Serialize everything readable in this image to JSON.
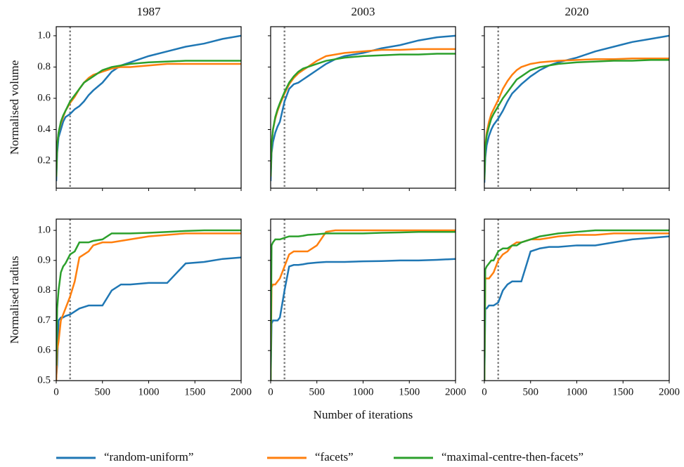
{
  "chart_data": [
    {
      "type": "line",
      "title": "1987",
      "ylabel": "Normalised volume",
      "x": [
        0,
        10,
        25,
        50,
        75,
        100,
        150,
        200,
        250,
        300,
        350,
        400,
        500,
        600,
        700,
        800,
        1000,
        1200,
        1400,
        1600,
        1800,
        2000
      ],
      "xlim": [
        0,
        2000
      ],
      "ylim": [
        0.025,
        1.058
      ],
      "xticks": [
        0,
        500,
        1000,
        1500,
        2000
      ],
      "yticks": [
        0.2,
        0.4,
        0.6,
        0.8,
        {
          "value": 1,
          "label": "1.0"
        }
      ],
      "show_xticklabels": false,
      "show_yticklabels": true,
      "vline": 150,
      "legend": "bottom",
      "series": [
        {
          "name": "“random-uniform”",
          "color": "#1f77b4",
          "values": [
            0.07,
            0.25,
            0.35,
            0.4,
            0.45,
            0.48,
            0.5,
            0.53,
            0.55,
            0.58,
            0.62,
            0.65,
            0.7,
            0.77,
            0.81,
            0.83,
            0.87,
            0.9,
            0.93,
            0.95,
            0.98,
            1.0
          ]
        },
        {
          "name": "“facets”",
          "color": "#ff7f0e",
          "values": [
            0.1,
            0.3,
            0.38,
            0.44,
            0.48,
            0.52,
            0.57,
            0.61,
            0.66,
            0.7,
            0.73,
            0.75,
            0.77,
            0.79,
            0.8,
            0.8,
            0.81,
            0.82,
            0.82,
            0.82,
            0.82,
            0.82
          ]
        },
        {
          "name": "“maximal-centre-then-facets”",
          "color": "#2ca02c",
          "values": [
            0.1,
            0.3,
            0.38,
            0.45,
            0.49,
            0.52,
            0.58,
            0.62,
            0.66,
            0.7,
            0.72,
            0.74,
            0.78,
            0.8,
            0.81,
            0.82,
            0.83,
            0.835,
            0.84,
            0.84,
            0.84,
            0.84
          ]
        }
      ]
    },
    {
      "type": "line",
      "title": "2003",
      "x": [
        0,
        10,
        25,
        50,
        75,
        100,
        150,
        200,
        250,
        300,
        350,
        400,
        500,
        600,
        700,
        800,
        1000,
        1200,
        1400,
        1600,
        1800,
        2000
      ],
      "xlim": [
        0,
        2000
      ],
      "ylim": [
        0.025,
        1.058
      ],
      "xticks": [
        0,
        500,
        1000,
        1500,
        2000
      ],
      "yticks": [
        0.2,
        0.4,
        0.6,
        0.8,
        1
      ],
      "show_xticklabels": false,
      "show_yticklabels": false,
      "vline": 150,
      "series": [
        {
          "color": "#1f77b4",
          "values": [
            0.07,
            0.25,
            0.32,
            0.38,
            0.42,
            0.45,
            0.58,
            0.66,
            0.69,
            0.7,
            0.72,
            0.74,
            0.78,
            0.82,
            0.85,
            0.87,
            0.89,
            0.92,
            0.94,
            0.97,
            0.99,
            1.0
          ]
        },
        {
          "color": "#ff7f0e",
          "values": [
            0.1,
            0.3,
            0.4,
            0.47,
            0.52,
            0.56,
            0.63,
            0.69,
            0.73,
            0.76,
            0.78,
            0.8,
            0.84,
            0.87,
            0.88,
            0.89,
            0.9,
            0.91,
            0.91,
            0.915,
            0.915,
            0.915
          ]
        },
        {
          "color": "#2ca02c",
          "values": [
            0.1,
            0.3,
            0.4,
            0.48,
            0.53,
            0.57,
            0.64,
            0.7,
            0.74,
            0.77,
            0.79,
            0.8,
            0.82,
            0.84,
            0.85,
            0.86,
            0.87,
            0.875,
            0.88,
            0.88,
            0.885,
            0.885
          ]
        }
      ]
    },
    {
      "type": "line",
      "title": "2020",
      "x": [
        0,
        10,
        25,
        50,
        75,
        100,
        150,
        200,
        250,
        300,
        350,
        400,
        500,
        600,
        700,
        800,
        1000,
        1200,
        1400,
        1600,
        1800,
        2000
      ],
      "xlim": [
        0,
        2000
      ],
      "ylim": [
        0.025,
        1.058
      ],
      "xticks": [
        0,
        500,
        1000,
        1500,
        2000
      ],
      "yticks": [
        0.2,
        0.4,
        0.6,
        0.8,
        1
      ],
      "show_xticklabels": false,
      "show_yticklabels": false,
      "vline": 150,
      "series": [
        {
          "color": "#1f77b4",
          "values": [
            0.06,
            0.22,
            0.3,
            0.36,
            0.4,
            0.43,
            0.47,
            0.52,
            0.58,
            0.63,
            0.66,
            0.69,
            0.74,
            0.78,
            0.81,
            0.83,
            0.86,
            0.9,
            0.93,
            0.96,
            0.98,
            1.0
          ]
        },
        {
          "color": "#ff7f0e",
          "values": [
            0.08,
            0.3,
            0.38,
            0.45,
            0.5,
            0.53,
            0.59,
            0.66,
            0.71,
            0.75,
            0.78,
            0.8,
            0.82,
            0.83,
            0.835,
            0.84,
            0.845,
            0.85,
            0.85,
            0.855,
            0.855,
            0.855
          ]
        },
        {
          "color": "#2ca02c",
          "values": [
            0.08,
            0.28,
            0.36,
            0.42,
            0.47,
            0.5,
            0.55,
            0.6,
            0.64,
            0.68,
            0.72,
            0.74,
            0.78,
            0.8,
            0.81,
            0.82,
            0.83,
            0.835,
            0.84,
            0.84,
            0.845,
            0.845
          ]
        }
      ]
    },
    {
      "type": "line",
      "ylabel": "Normalised radius",
      "x": [
        0,
        10,
        25,
        50,
        75,
        100,
        150,
        200,
        250,
        300,
        350,
        400,
        500,
        600,
        700,
        800,
        1000,
        1200,
        1400,
        1600,
        1800,
        2000
      ],
      "xlim": [
        0,
        2000
      ],
      "ylim": [
        0.5,
        1.0375
      ],
      "xticks": [
        0,
        500,
        1000,
        1500,
        2000
      ],
      "yticks": [
        0.5,
        0.6,
        0.7,
        0.8,
        0.9,
        {
          "value": 1,
          "label": "1.0"
        }
      ],
      "show_xticklabels": true,
      "show_yticklabels": true,
      "vline": 150,
      "series": [
        {
          "color": "#1f77b4",
          "values": [
            0.51,
            0.55,
            0.7,
            0.71,
            0.71,
            0.715,
            0.72,
            0.73,
            0.74,
            0.745,
            0.75,
            0.75,
            0.75,
            0.8,
            0.82,
            0.82,
            0.825,
            0.825,
            0.89,
            0.895,
            0.905,
            0.91
          ]
        },
        {
          "color": "#ff7f0e",
          "values": [
            0.5,
            0.6,
            0.63,
            0.7,
            0.72,
            0.74,
            0.78,
            0.83,
            0.91,
            0.92,
            0.93,
            0.95,
            0.96,
            0.96,
            0.965,
            0.97,
            0.98,
            0.985,
            0.99,
            0.99,
            0.99,
            0.99
          ]
        },
        {
          "color": "#2ca02c",
          "values": [
            0.55,
            0.74,
            0.8,
            0.86,
            0.88,
            0.89,
            0.92,
            0.93,
            0.96,
            0.96,
            0.96,
            0.965,
            0.97,
            0.99,
            0.99,
            0.99,
            0.992,
            0.995,
            0.998,
            1.0,
            1.0,
            1.0
          ]
        }
      ]
    },
    {
      "type": "line",
      "xlabel": "Number of iterations",
      "x": [
        0,
        10,
        25,
        50,
        75,
        100,
        150,
        200,
        250,
        300,
        350,
        400,
        500,
        600,
        700,
        800,
        1000,
        1200,
        1400,
        1600,
        1800,
        2000
      ],
      "xlim": [
        0,
        2000
      ],
      "ylim": [
        0.5,
        1.0375
      ],
      "xticks": [
        0,
        500,
        1000,
        1500,
        2000
      ],
      "yticks": [
        0.5,
        0.6,
        0.7,
        0.8,
        0.9,
        1
      ],
      "show_xticklabels": true,
      "show_yticklabels": false,
      "vline": 150,
      "series": [
        {
          "color": "#1f77b4",
          "values": [
            0.5,
            0.69,
            0.7,
            0.7,
            0.7,
            0.71,
            0.8,
            0.88,
            0.885,
            0.885,
            0.887,
            0.89,
            0.893,
            0.895,
            0.895,
            0.895,
            0.897,
            0.898,
            0.9,
            0.9,
            0.902,
            0.905
          ]
        },
        {
          "color": "#ff7f0e",
          "values": [
            0.5,
            0.81,
            0.82,
            0.82,
            0.83,
            0.84,
            0.88,
            0.92,
            0.93,
            0.93,
            0.93,
            0.93,
            0.95,
            0.995,
            1.0,
            1.0,
            1.0,
            1.0,
            1.0,
            1.0,
            1.0,
            1.0
          ]
        },
        {
          "color": "#2ca02c",
          "values": [
            0.5,
            0.95,
            0.96,
            0.97,
            0.97,
            0.97,
            0.975,
            0.98,
            0.98,
            0.98,
            0.982,
            0.985,
            0.987,
            0.99,
            0.99,
            0.99,
            0.99,
            0.992,
            0.993,
            0.995,
            0.995,
            0.995
          ]
        }
      ]
    },
    {
      "type": "line",
      "x": [
        0,
        10,
        25,
        50,
        75,
        100,
        150,
        200,
        250,
        300,
        350,
        400,
        500,
        600,
        700,
        800,
        1000,
        1200,
        1400,
        1600,
        1800,
        2000
      ],
      "xlim": [
        0,
        2000
      ],
      "ylim": [
        0.5,
        1.0375
      ],
      "xticks": [
        0,
        500,
        1000,
        1500,
        2000
      ],
      "yticks": [
        0.5,
        0.6,
        0.7,
        0.8,
        0.9,
        1
      ],
      "show_xticklabels": true,
      "show_yticklabels": false,
      "vline": 150,
      "series": [
        {
          "color": "#1f77b4",
          "values": [
            0.5,
            0.74,
            0.74,
            0.75,
            0.75,
            0.75,
            0.76,
            0.8,
            0.82,
            0.83,
            0.83,
            0.83,
            0.93,
            0.94,
            0.945,
            0.945,
            0.95,
            0.95,
            0.96,
            0.97,
            0.975,
            0.98
          ]
        },
        {
          "color": "#ff7f0e",
          "values": [
            0.5,
            0.84,
            0.84,
            0.84,
            0.85,
            0.86,
            0.9,
            0.92,
            0.93,
            0.95,
            0.96,
            0.96,
            0.97,
            0.97,
            0.975,
            0.98,
            0.985,
            0.985,
            0.99,
            0.99,
            0.99,
            0.99
          ]
        },
        {
          "color": "#2ca02c",
          "values": [
            0.5,
            0.87,
            0.88,
            0.89,
            0.9,
            0.9,
            0.93,
            0.94,
            0.94,
            0.95,
            0.95,
            0.96,
            0.97,
            0.98,
            0.985,
            0.99,
            0.995,
            1.0,
            1.0,
            1.0,
            1.0,
            1.0
          ]
        }
      ]
    }
  ]
}
